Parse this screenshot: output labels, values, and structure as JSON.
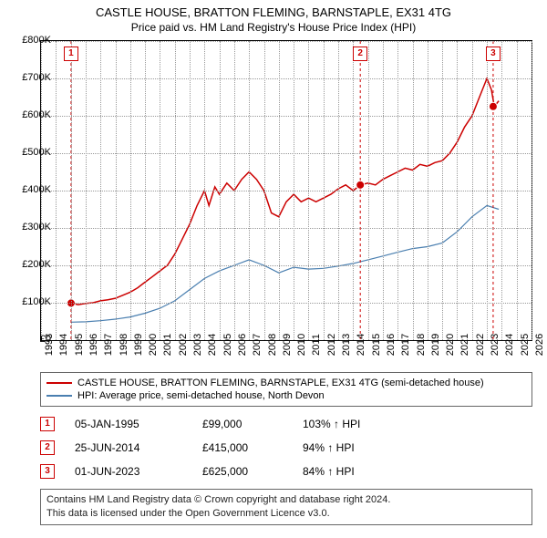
{
  "title": "CASTLE HOUSE, BRATTON FLEMING, BARNSTAPLE, EX31 4TG",
  "subtitle": "Price paid vs. HM Land Registry's House Price Index (HPI)",
  "chart": {
    "type": "line",
    "background_color": "#ffffff",
    "grid_color": "#999999",
    "grid_style": "dotted",
    "xlim": [
      1993,
      2026
    ],
    "ylim": [
      0,
      800000
    ],
    "ytick_step": 100000,
    "ytick_labels": [
      "£0",
      "£100K",
      "£200K",
      "£300K",
      "£400K",
      "£500K",
      "£600K",
      "£700K",
      "£800K"
    ],
    "xticks": [
      1993,
      1994,
      1995,
      1996,
      1997,
      1998,
      1999,
      2000,
      2001,
      2002,
      2003,
      2004,
      2005,
      2006,
      2007,
      2008,
      2009,
      2010,
      2011,
      2012,
      2013,
      2014,
      2015,
      2016,
      2017,
      2018,
      2019,
      2020,
      2021,
      2022,
      2023,
      2024,
      2025,
      2026
    ],
    "series": [
      {
        "name": "price_paid",
        "color": "#cc0000",
        "line_width": 1.5,
        "points": [
          [
            1995.0,
            99000
          ],
          [
            1995.5,
            95000
          ],
          [
            1996.0,
            98000
          ],
          [
            1996.5,
            100000
          ],
          [
            1997.0,
            105000
          ],
          [
            1997.5,
            108000
          ],
          [
            1998.0,
            112000
          ],
          [
            1998.5,
            120000
          ],
          [
            1999.0,
            128000
          ],
          [
            1999.5,
            140000
          ],
          [
            2000.0,
            155000
          ],
          [
            2000.5,
            170000
          ],
          [
            2001.0,
            185000
          ],
          [
            2001.5,
            200000
          ],
          [
            2002.0,
            230000
          ],
          [
            2002.5,
            270000
          ],
          [
            2003.0,
            310000
          ],
          [
            2003.5,
            360000
          ],
          [
            2004.0,
            400000
          ],
          [
            2004.3,
            360000
          ],
          [
            2004.7,
            410000
          ],
          [
            2005.0,
            390000
          ],
          [
            2005.5,
            420000
          ],
          [
            2006.0,
            400000
          ],
          [
            2006.5,
            430000
          ],
          [
            2007.0,
            450000
          ],
          [
            2007.5,
            430000
          ],
          [
            2008.0,
            400000
          ],
          [
            2008.5,
            340000
          ],
          [
            2009.0,
            330000
          ],
          [
            2009.5,
            370000
          ],
          [
            2010.0,
            390000
          ],
          [
            2010.5,
            370000
          ],
          [
            2011.0,
            380000
          ],
          [
            2011.5,
            370000
          ],
          [
            2012.0,
            380000
          ],
          [
            2012.5,
            390000
          ],
          [
            2013.0,
            405000
          ],
          [
            2013.5,
            415000
          ],
          [
            2014.0,
            400000
          ],
          [
            2014.5,
            415000
          ],
          [
            2015.0,
            420000
          ],
          [
            2015.5,
            415000
          ],
          [
            2016.0,
            430000
          ],
          [
            2016.5,
            440000
          ],
          [
            2017.0,
            450000
          ],
          [
            2017.5,
            460000
          ],
          [
            2018.0,
            455000
          ],
          [
            2018.5,
            470000
          ],
          [
            2019.0,
            465000
          ],
          [
            2019.5,
            475000
          ],
          [
            2020.0,
            480000
          ],
          [
            2020.5,
            500000
          ],
          [
            2021.0,
            530000
          ],
          [
            2021.5,
            570000
          ],
          [
            2022.0,
            600000
          ],
          [
            2022.5,
            650000
          ],
          [
            2023.0,
            700000
          ],
          [
            2023.3,
            670000
          ],
          [
            2023.5,
            625000
          ],
          [
            2023.8,
            640000
          ]
        ]
      },
      {
        "name": "hpi",
        "color": "#4a7fb0",
        "line_width": 1.2,
        "points": [
          [
            1995.0,
            48000
          ],
          [
            1996.0,
            49000
          ],
          [
            1997.0,
            52000
          ],
          [
            1998.0,
            56000
          ],
          [
            1999.0,
            62000
          ],
          [
            2000.0,
            72000
          ],
          [
            2001.0,
            85000
          ],
          [
            2002.0,
            105000
          ],
          [
            2003.0,
            135000
          ],
          [
            2004.0,
            165000
          ],
          [
            2005.0,
            185000
          ],
          [
            2006.0,
            200000
          ],
          [
            2007.0,
            215000
          ],
          [
            2008.0,
            200000
          ],
          [
            2009.0,
            180000
          ],
          [
            2010.0,
            195000
          ],
          [
            2011.0,
            190000
          ],
          [
            2012.0,
            192000
          ],
          [
            2013.0,
            198000
          ],
          [
            2014.0,
            205000
          ],
          [
            2015.0,
            215000
          ],
          [
            2016.0,
            225000
          ],
          [
            2017.0,
            235000
          ],
          [
            2018.0,
            245000
          ],
          [
            2019.0,
            250000
          ],
          [
            2020.0,
            260000
          ],
          [
            2021.0,
            290000
          ],
          [
            2022.0,
            330000
          ],
          [
            2023.0,
            360000
          ],
          [
            2023.8,
            350000
          ]
        ]
      }
    ],
    "sale_markers": [
      {
        "num": "1",
        "year": 1995.02,
        "price": 99000
      },
      {
        "num": "2",
        "year": 2014.48,
        "price": 415000
      },
      {
        "num": "3",
        "year": 2023.42,
        "price": 625000
      }
    ]
  },
  "legend": {
    "items": [
      {
        "color": "#cc0000",
        "label": "CASTLE HOUSE, BRATTON FLEMING, BARNSTAPLE, EX31 4TG (semi-detached house)"
      },
      {
        "color": "#4a7fb0",
        "label": "HPI: Average price, semi-detached house, North Devon"
      }
    ]
  },
  "sales": [
    {
      "num": "1",
      "date": "05-JAN-1995",
      "price": "£99,000",
      "hpi": "103% ↑ HPI"
    },
    {
      "num": "2",
      "date": "25-JUN-2014",
      "price": "£415,000",
      "hpi": "94% ↑ HPI"
    },
    {
      "num": "3",
      "date": "01-JUN-2023",
      "price": "£625,000",
      "hpi": "84% ↑ HPI"
    }
  ],
  "footer": {
    "line1": "Contains HM Land Registry data © Crown copyright and database right 2024.",
    "line2": "This data is licensed under the Open Government Licence v3.0."
  }
}
